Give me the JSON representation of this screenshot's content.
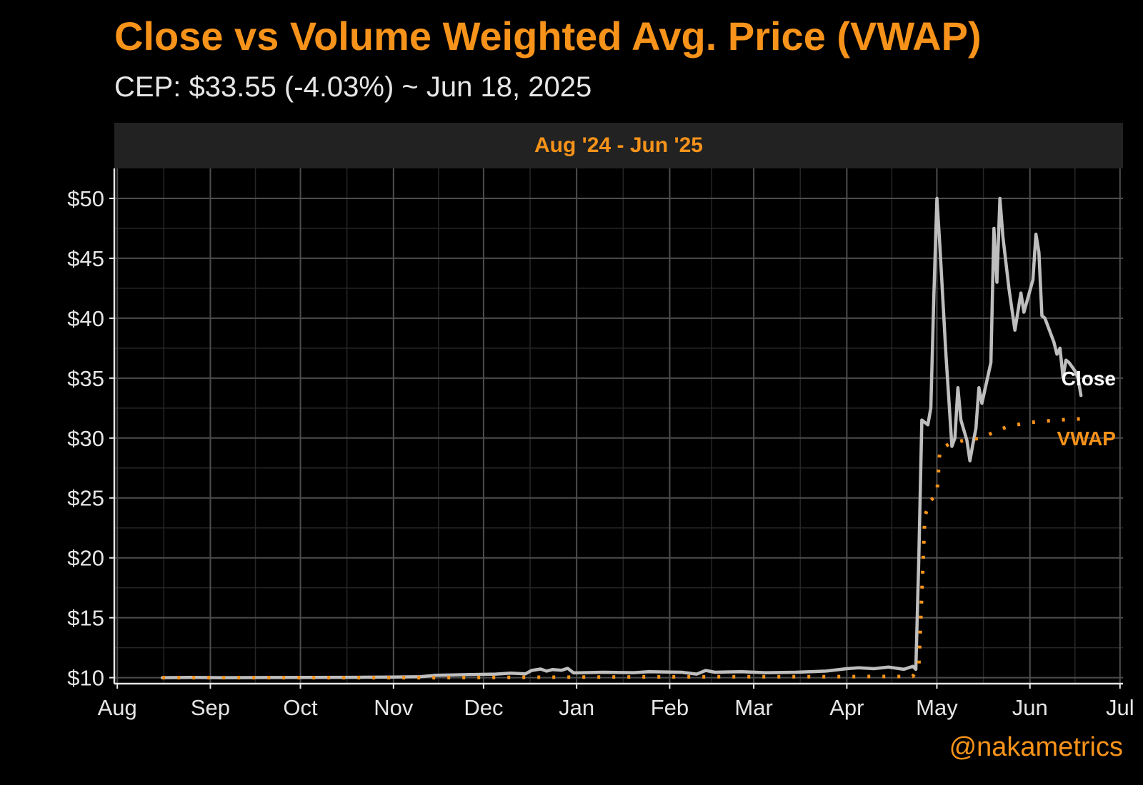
{
  "header": {
    "title": "Close vs Volume Weighted Avg. Price (VWAP)",
    "subtitle": "CEP: $33.55 (-4.03%) ~ Jun 18, 2025",
    "facet_label": "Aug '24 - Jun '25",
    "credit": "@nakametrics"
  },
  "colors": {
    "background": "#000000",
    "accent": "#F7931A",
    "close_line": "#BEBEBE",
    "vwap_line": "#F7931A",
    "grid": "#4d4d4d",
    "grid_minor": "#262626"
  },
  "chart_data": {
    "type": "line",
    "title": "Close vs Volume Weighted Avg. Price (VWAP)",
    "subtitle": "CEP: $33.55 (-4.03%) ~ Jun 18, 2025",
    "xlabel": "",
    "ylabel": "",
    "x_range": [
      "2024-07-31",
      "2025-07-02"
    ],
    "ylim": [
      9.5,
      52.5
    ],
    "grid": true,
    "x_tick_dates": [
      "2024-08-01",
      "2024-09-01",
      "2024-10-01",
      "2024-11-01",
      "2024-12-01",
      "2025-01-01",
      "2025-02-01",
      "2025-03-01",
      "2025-04-01",
      "2025-05-01",
      "2025-06-01",
      "2025-07-01"
    ],
    "x_tick_labels": [
      "Aug",
      "Sep",
      "Oct",
      "Nov",
      "Dec",
      "Jan",
      "Feb",
      "Mar",
      "Apr",
      "May",
      "Jun",
      "Jul"
    ],
    "y_ticks": [
      10,
      15,
      20,
      25,
      30,
      35,
      40,
      45,
      50
    ],
    "y_tick_labels": [
      "$10",
      "$15",
      "$20",
      "$25",
      "$30",
      "$35",
      "$40",
      "$45",
      "$50"
    ],
    "series": [
      {
        "name": "Close",
        "color": "#BEBEBE",
        "style": "solid",
        "points": [
          [
            "2024-08-16",
            10.0
          ],
          [
            "2024-08-25",
            10.02
          ],
          [
            "2024-09-05",
            10.0
          ],
          [
            "2024-09-20",
            10.01
          ],
          [
            "2024-10-05",
            10.02
          ],
          [
            "2024-10-20",
            10.03
          ],
          [
            "2024-11-01",
            10.05
          ],
          [
            "2024-11-10",
            10.08
          ],
          [
            "2024-11-15",
            10.2
          ],
          [
            "2024-11-25",
            10.25
          ],
          [
            "2024-12-05",
            10.3
          ],
          [
            "2024-12-10",
            10.38
          ],
          [
            "2024-12-15",
            10.32
          ],
          [
            "2024-12-17",
            10.6
          ],
          [
            "2024-12-20",
            10.72
          ],
          [
            "2024-12-22",
            10.55
          ],
          [
            "2024-12-24",
            10.68
          ],
          [
            "2024-12-27",
            10.62
          ],
          [
            "2024-12-29",
            10.78
          ],
          [
            "2024-12-31",
            10.4
          ],
          [
            "2025-01-10",
            10.45
          ],
          [
            "2025-01-20",
            10.42
          ],
          [
            "2025-01-25",
            10.5
          ],
          [
            "2025-02-05",
            10.45
          ],
          [
            "2025-02-10",
            10.3
          ],
          [
            "2025-02-13",
            10.6
          ],
          [
            "2025-02-16",
            10.45
          ],
          [
            "2025-02-25",
            10.5
          ],
          [
            "2025-03-05",
            10.42
          ],
          [
            "2025-03-15",
            10.45
          ],
          [
            "2025-03-25",
            10.55
          ],
          [
            "2025-04-01",
            10.75
          ],
          [
            "2025-04-05",
            10.82
          ],
          [
            "2025-04-10",
            10.75
          ],
          [
            "2025-04-15",
            10.88
          ],
          [
            "2025-04-20",
            10.7
          ],
          [
            "2025-04-23",
            10.95
          ],
          [
            "2025-04-24",
            10.7
          ],
          [
            "2025-04-25",
            20.0
          ],
          [
            "2025-04-26",
            31.5
          ],
          [
            "2025-04-28",
            31.1
          ],
          [
            "2025-04-29",
            32.5
          ],
          [
            "2025-04-30",
            42.0
          ],
          [
            "2025-05-01",
            50.0
          ],
          [
            "2025-05-02",
            46.0
          ],
          [
            "2025-05-04",
            37.0
          ],
          [
            "2025-05-06",
            29.3
          ],
          [
            "2025-05-07",
            30.0
          ],
          [
            "2025-05-08",
            34.2
          ],
          [
            "2025-05-09",
            31.5
          ],
          [
            "2025-05-11",
            29.8
          ],
          [
            "2025-05-12",
            28.1
          ],
          [
            "2025-05-13",
            29.5
          ],
          [
            "2025-05-14",
            30.8
          ],
          [
            "2025-05-15",
            34.2
          ],
          [
            "2025-05-16",
            32.9
          ],
          [
            "2025-05-19",
            36.3
          ],
          [
            "2025-05-20",
            47.5
          ],
          [
            "2025-05-21",
            43.0
          ],
          [
            "2025-05-22",
            50.0
          ],
          [
            "2025-05-23",
            46.8
          ],
          [
            "2025-05-25",
            42.5
          ],
          [
            "2025-05-27",
            39.0
          ],
          [
            "2025-05-29",
            42.1
          ],
          [
            "2025-05-30",
            40.5
          ],
          [
            "2025-06-02",
            43.2
          ],
          [
            "2025-06-03",
            47.0
          ],
          [
            "2025-06-04",
            45.5
          ],
          [
            "2025-06-05",
            40.2
          ],
          [
            "2025-06-06",
            40.0
          ],
          [
            "2025-06-09",
            38.0
          ],
          [
            "2025-06-10",
            37.0
          ],
          [
            "2025-06-11",
            37.5
          ],
          [
            "2025-06-12",
            35.1
          ],
          [
            "2025-06-13",
            36.5
          ],
          [
            "2025-06-14",
            36.3
          ],
          [
            "2025-06-16",
            35.6
          ],
          [
            "2025-06-17",
            35.0
          ],
          [
            "2025-06-18",
            33.55
          ]
        ]
      },
      {
        "name": "VWAP",
        "color": "#F7931A",
        "style": "dotted",
        "points": [
          [
            "2024-08-16",
            10.0
          ],
          [
            "2024-10-01",
            10.0
          ],
          [
            "2024-11-15",
            10.0
          ],
          [
            "2025-01-01",
            10.05
          ],
          [
            "2025-02-15",
            10.08
          ],
          [
            "2025-03-15",
            10.08
          ],
          [
            "2025-04-23",
            10.1
          ],
          [
            "2025-04-25",
            11.0
          ],
          [
            "2025-04-26",
            17.0
          ],
          [
            "2025-04-27",
            23.5
          ],
          [
            "2025-04-29",
            24.8
          ],
          [
            "2025-05-01",
            25.3
          ],
          [
            "2025-05-02",
            29.0
          ],
          [
            "2025-05-05",
            29.5
          ],
          [
            "2025-05-10",
            29.8
          ],
          [
            "2025-05-16",
            30.0
          ],
          [
            "2025-05-20",
            30.5
          ],
          [
            "2025-05-25",
            31.0
          ],
          [
            "2025-06-01",
            31.3
          ],
          [
            "2025-06-10",
            31.5
          ],
          [
            "2025-06-18",
            31.6
          ]
        ]
      }
    ]
  }
}
